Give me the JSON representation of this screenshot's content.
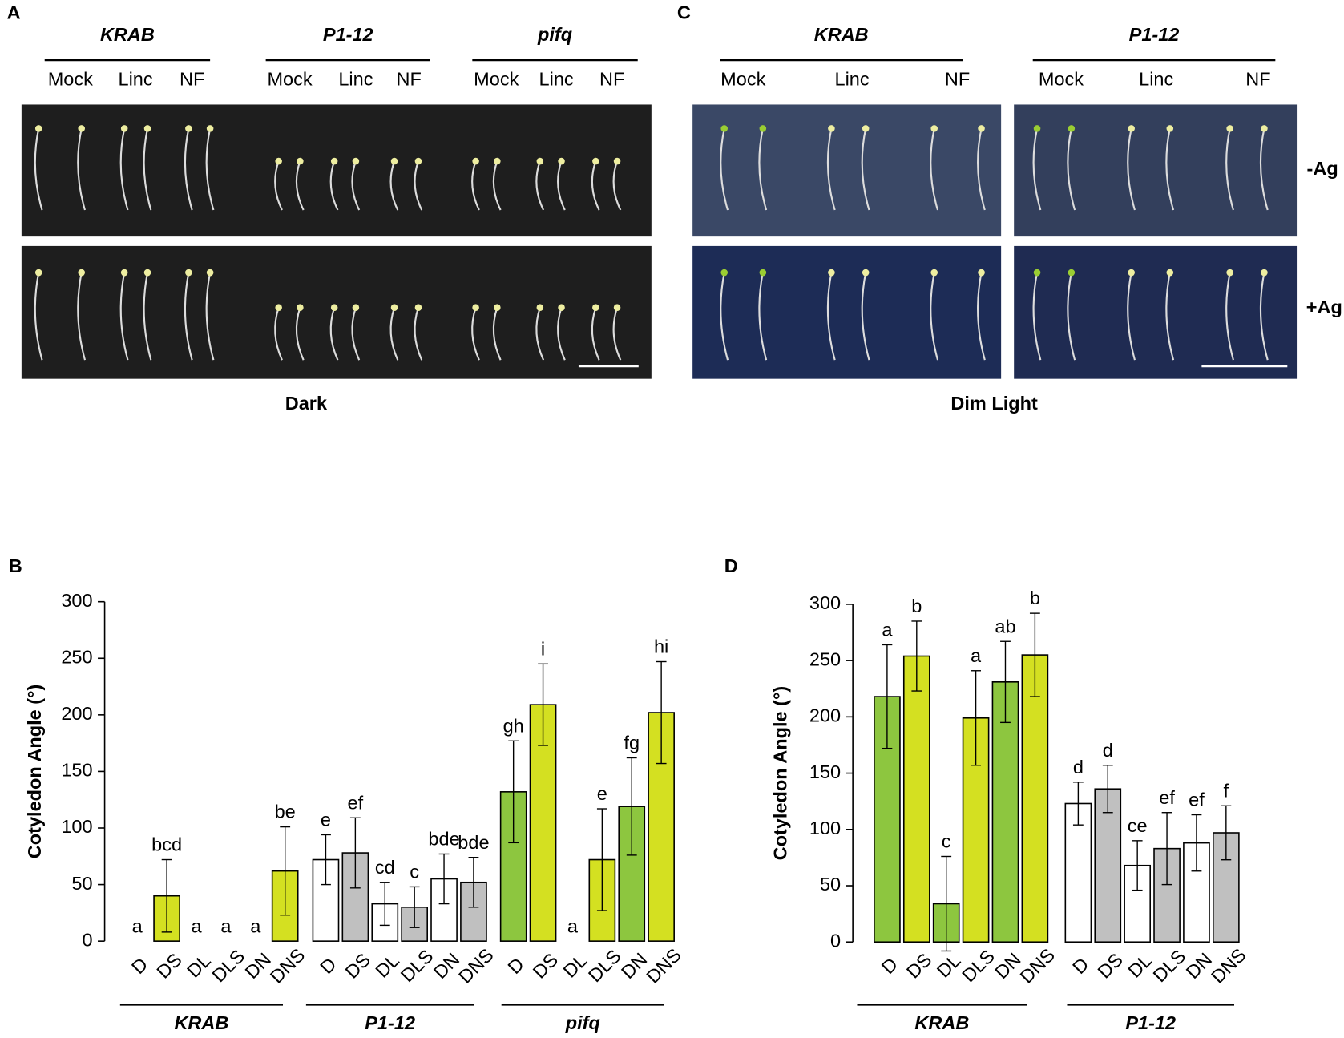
{
  "photo_panels": [
    {
      "label": "A",
      "groups": [
        {
          "name": "KRAB",
          "treatments": [
            "Mock",
            "Linc",
            "NF"
          ]
        },
        {
          "name": "P1-12",
          "treatments": [
            "Mock",
            "Linc",
            "NF"
          ]
        },
        {
          "name": "pifq",
          "treatments": [
            "Mock",
            "Linc",
            "NF"
          ]
        }
      ],
      "caption": "Dark"
    },
    {
      "label": "C",
      "groups": [
        {
          "name": "KRAB",
          "treatments": [
            "Mock",
            "Linc",
            "NF"
          ]
        },
        {
          "name": "P1-12",
          "treatments": [
            "Mock",
            "Linc",
            "NF"
          ]
        }
      ],
      "caption": "Dim Light",
      "rows": [
        "-Ag",
        "+Ag"
      ]
    }
  ],
  "chart_data": [
    {
      "type": "bar",
      "label": "B",
      "ylabel": "Cotyledon Angle (°)",
      "ylim": [
        0,
        300
      ],
      "yticks": [
        0,
        50,
        100,
        150,
        200,
        250,
        300
      ],
      "groups": [
        "KRAB",
        "P1-12",
        "pifq"
      ],
      "categories": [
        "D",
        "DS",
        "DL",
        "DLS",
        "DN",
        "DNS",
        "D",
        "DS",
        "DL",
        "DLS",
        "DN",
        "DNS",
        "D",
        "DS",
        "DL",
        "DLS",
        "DN",
        "DNS"
      ],
      "values": [
        0,
        40,
        0,
        0,
        0,
        62,
        72,
        78,
        33,
        30,
        55,
        52,
        132,
        209,
        0,
        72,
        119,
        202
      ],
      "errors": [
        0,
        32,
        0,
        0,
        0,
        39,
        22,
        31,
        19,
        18,
        22,
        22,
        45,
        36,
        0,
        45,
        43,
        45
      ],
      "colors": [
        "#8dc63f",
        "#d4e021",
        "#8dc63f",
        "#d4e021",
        "#8dc63f",
        "#d4e021",
        "#ffffff",
        "#c0c0c0",
        "#ffffff",
        "#c0c0c0",
        "#ffffff",
        "#c0c0c0",
        "#8dc63f",
        "#d4e021",
        "#8dc63f",
        "#d4e021",
        "#8dc63f",
        "#d4e021"
      ],
      "annotations": [
        "a",
        "bcd",
        "a",
        "a",
        "a",
        "be",
        "e",
        "ef",
        "cd",
        "c",
        "bde",
        "bde",
        "gh",
        "i",
        "a",
        "e",
        "fg",
        "hi"
      ]
    },
    {
      "type": "bar",
      "label": "D",
      "ylabel": "Cotyledon Angle (°)",
      "ylim": [
        0,
        300
      ],
      "yticks": [
        0,
        50,
        100,
        150,
        200,
        250,
        300
      ],
      "groups": [
        "KRAB",
        "P1-12"
      ],
      "categories": [
        "D",
        "DS",
        "DL",
        "DLS",
        "DN",
        "DNS",
        "D",
        "DS",
        "DL",
        "DLS",
        "DN",
        "DNS"
      ],
      "values": [
        218,
        254,
        34,
        199,
        231,
        255,
        123,
        136,
        68,
        83,
        88,
        97
      ],
      "errors": [
        46,
        31,
        42,
        42,
        36,
        37,
        19,
        21,
        22,
        32,
        25,
        24
      ],
      "colors": [
        "#8dc63f",
        "#d4e021",
        "#8dc63f",
        "#d4e021",
        "#8dc63f",
        "#d4e021",
        "#ffffff",
        "#c0c0c0",
        "#ffffff",
        "#c0c0c0",
        "#ffffff",
        "#c0c0c0"
      ],
      "annotations": [
        "a",
        "b",
        "c",
        "a",
        "ab",
        "b",
        "d",
        "d",
        "ce",
        "ef",
        "ef",
        "f"
      ]
    }
  ]
}
